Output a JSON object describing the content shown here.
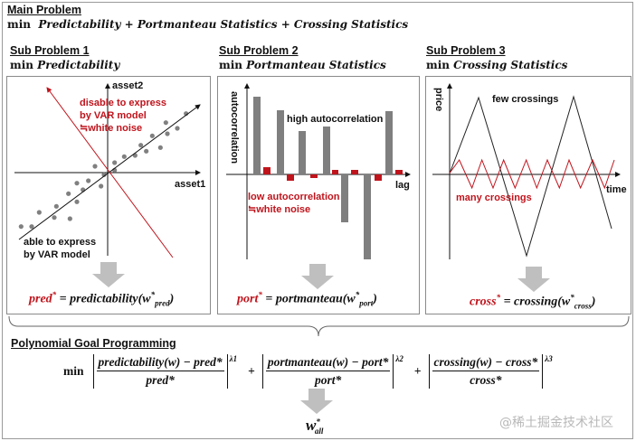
{
  "main": {
    "title": "Main Problem",
    "min": "min",
    "objective": "Predictability + Portmanteau Statistics + Crossing Statistics"
  },
  "sub1": {
    "title": "Sub Problem 1",
    "min": "min",
    "objective": "Predictability",
    "y_axis": "asset2",
    "x_axis": "asset1",
    "red_note": [
      "disable to express",
      "by VAR model",
      "≒white noise"
    ],
    "black_note": [
      "able to express",
      "by VAR model"
    ],
    "formula_lhs": "pred",
    "formula_rhs": "= predictability(w",
    "formula_sub": "pred",
    "star": "*",
    "close": ")"
  },
  "sub2": {
    "title": "Sub Problem 2",
    "min": "min",
    "objective": "Portmanteau Statistics",
    "y_axis": "autocorrelation",
    "x_axis": "lag",
    "high_note": "high autocorrelation",
    "red_note": [
      "low autocorrelation",
      "≒white noise"
    ],
    "formula_lhs": "port",
    "formula_rhs": "= portmanteau(w",
    "formula_sub": "port",
    "star": "*",
    "close": ")"
  },
  "sub3": {
    "title": "Sub Problem 3",
    "min": "min",
    "objective": "Crossing Statistics",
    "y_axis": "price",
    "x_axis": "time",
    "few_note": "few crossings",
    "many_note": "many crossings",
    "formula_lhs": "cross",
    "formula_rhs": "= crossing(w",
    "formula_sub": "cross",
    "star": "*",
    "close": ")"
  },
  "pgp": {
    "title": "Polynomial Goal Programming",
    "min": "min",
    "terms": [
      {
        "num": "predictability(w) − pred*",
        "den": "pred*",
        "exp": "λ1"
      },
      {
        "num": "portmanteau(w) − port*",
        "den": "port*",
        "exp": "λ2"
      },
      {
        "num": "crossing(w) − cross*",
        "den": "cross*",
        "exp": "λ3"
      }
    ],
    "plus": "+",
    "result": "w",
    "result_sup": "*",
    "result_sub": "all"
  },
  "watermark": "@稀土掘金技术社区",
  "colors": {
    "red": "#c0141c",
    "bar": "#7f7f7f",
    "arrow": "#bfbfbf"
  }
}
